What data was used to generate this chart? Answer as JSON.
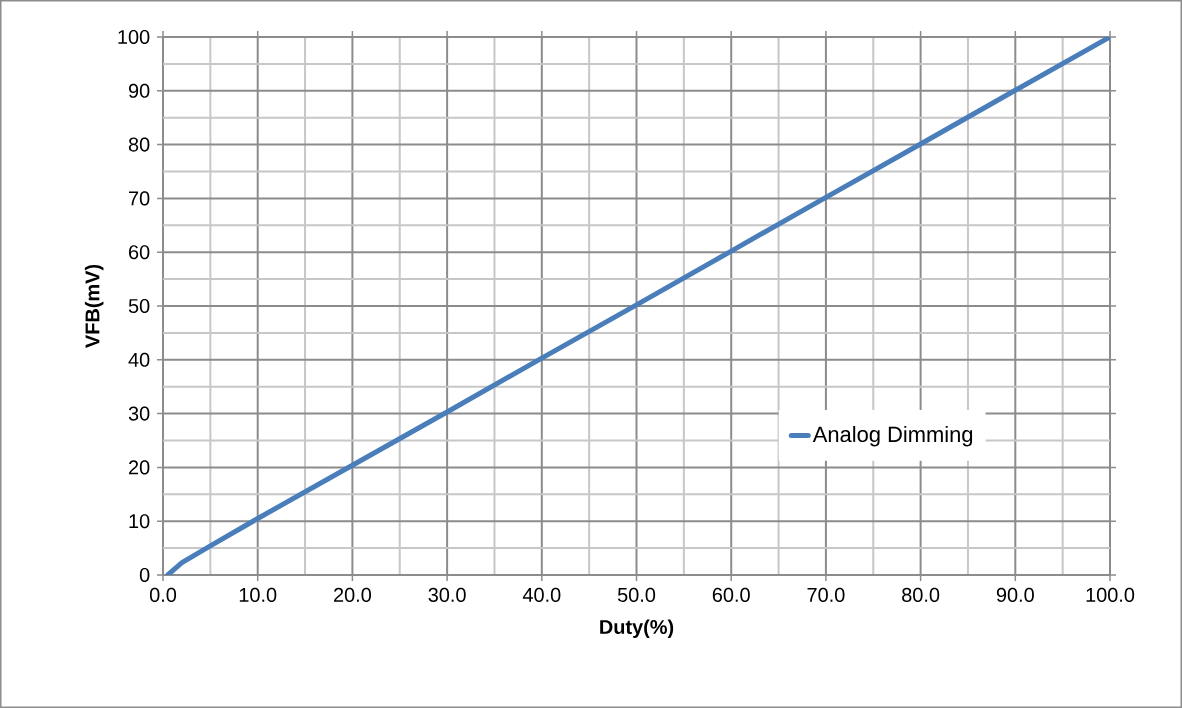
{
  "chart_data": {
    "type": "line",
    "xlabel": "Duty(%)",
    "ylabel": "VFB(mV)",
    "series": [
      {
        "name": "Analog Dimming",
        "color": "#4a7ebb",
        "x": [
          0.5,
          2,
          5,
          10,
          20,
          30,
          40,
          50,
          60,
          70,
          80,
          90,
          100
        ],
        "values": [
          0,
          2.3,
          5.4,
          10.5,
          20.4,
          30.3,
          40.3,
          50.2,
          60.2,
          70.2,
          80.1,
          90.1,
          100
        ]
      }
    ],
    "xlim": [
      0,
      100
    ],
    "ylim": [
      0,
      100
    ],
    "xticks": [
      {
        "value": 0,
        "label": "0.0"
      },
      {
        "value": 10,
        "label": "10.0"
      },
      {
        "value": 20,
        "label": "20.0"
      },
      {
        "value": 30,
        "label": "30.0"
      },
      {
        "value": 40,
        "label": "40.0"
      },
      {
        "value": 50,
        "label": "50.0"
      },
      {
        "value": 60,
        "label": "60.0"
      },
      {
        "value": 70,
        "label": "70.0"
      },
      {
        "value": 80,
        "label": "80.0"
      },
      {
        "value": 90,
        "label": "90.0"
      },
      {
        "value": 100,
        "label": "100.0"
      }
    ],
    "yticks": [
      0,
      10,
      20,
      30,
      40,
      50,
      60,
      70,
      80,
      90,
      100
    ],
    "grid": true,
    "legend": "right",
    "marker": "none",
    "line_style": "solid"
  }
}
